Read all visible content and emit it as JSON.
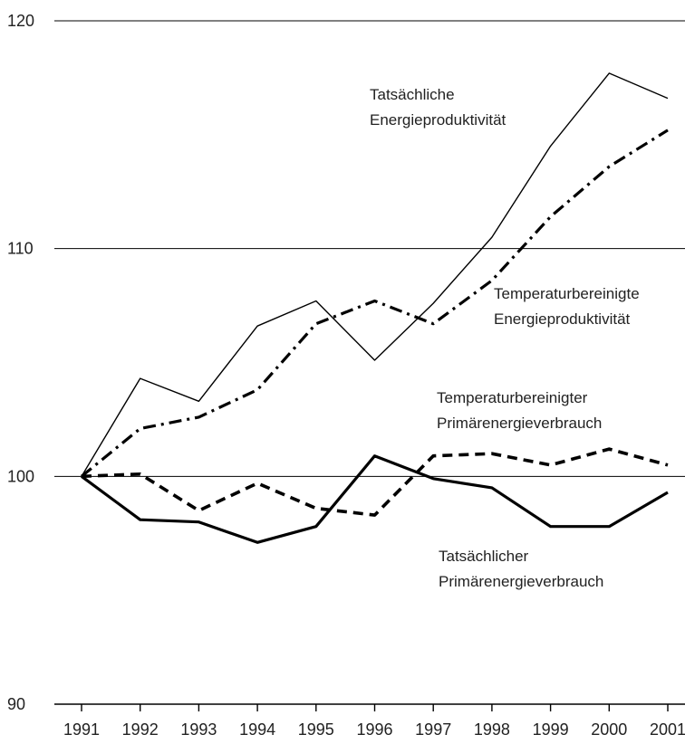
{
  "chart_data": {
    "type": "line",
    "title": "",
    "xlabel": "",
    "ylabel": "",
    "x": [
      "1991",
      "1992",
      "1993",
      "1994",
      "1995",
      "1996",
      "1997",
      "1998",
      "1999",
      "2000",
      "2001"
    ],
    "ylim": [
      90,
      120
    ],
    "yticks": [
      "90",
      "100",
      "110",
      "120"
    ],
    "gridlines_y": [
      100,
      110,
      120
    ],
    "series": [
      {
        "name": "Tatsächliche Energieproduktivität",
        "label_lines": [
          "Tatsächliche",
          "Energieproduktivität"
        ],
        "style": "thin-solid",
        "values": [
          100,
          104.3,
          103.3,
          106.6,
          107.7,
          105.1,
          107.6,
          110.5,
          114.5,
          117.7,
          116.6
        ]
      },
      {
        "name": "Temperaturbereinigte Energieproduktivität",
        "label_lines": [
          "Temperaturbereinigte",
          "Energieproduktivität"
        ],
        "style": "dash-dot",
        "values": [
          100,
          102.1,
          102.6,
          103.8,
          106.7,
          107.7,
          106.7,
          108.6,
          111.4,
          113.6,
          115.2
        ]
      },
      {
        "name": "Temperaturbereinigter Primärenergieverbrauch",
        "label_lines": [
          "Temperaturbereinigter",
          "Primärenergieverbrauch"
        ],
        "style": "dashed-thick",
        "values": [
          100,
          100.1,
          98.5,
          99.7,
          98.6,
          98.3,
          100.9,
          101.0,
          100.5,
          101.2,
          100.5
        ]
      },
      {
        "name": "Tatsächlicher Primärenergieverbrauch",
        "label_lines": [
          "Tatsächlicher",
          "Primärenergieverbrauch"
        ],
        "style": "thick-solid",
        "values": [
          100,
          98.1,
          98.0,
          97.1,
          97.8,
          100.9,
          99.9,
          99.5,
          97.8,
          97.8,
          99.3
        ]
      }
    ]
  }
}
